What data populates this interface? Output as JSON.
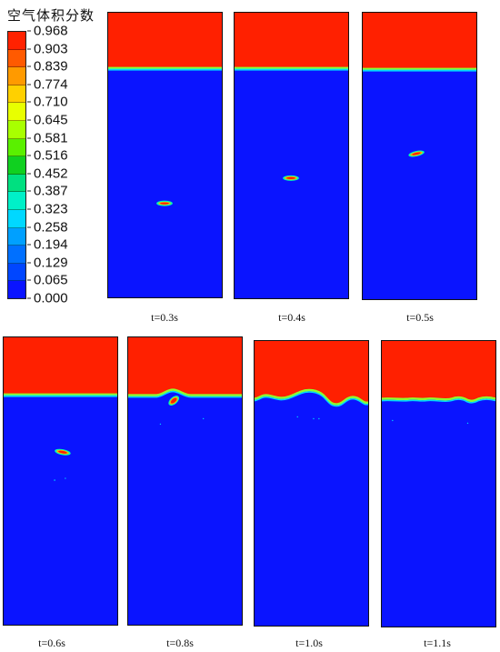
{
  "legend": {
    "title": "空气体积分数",
    "ticks": [
      "0.968",
      "0.903",
      "0.839",
      "0.774",
      "0.710",
      "0.645",
      "0.581",
      "0.516",
      "0.452",
      "0.387",
      "0.323",
      "0.258",
      "0.194",
      "0.129",
      "0.065",
      "0.000"
    ],
    "colors": [
      "#ff2200",
      "#ff5a00",
      "#ff9a00",
      "#ffd000",
      "#e8ff00",
      "#a8ff00",
      "#5af000",
      "#10d020",
      "#00e080",
      "#00f0c8",
      "#00d8ff",
      "#00a0ff",
      "#0070ff",
      "#0046ff",
      "#0a14ff"
    ]
  },
  "colors": {
    "air": "#ff2000",
    "water": "#0a14ff"
  },
  "panels": [
    {
      "caption": "t=0.3s"
    },
    {
      "caption": "t=0.4s"
    },
    {
      "caption": "t=0.5s"
    },
    {
      "caption": "t=0.6s"
    },
    {
      "caption": "t=0.8s"
    },
    {
      "caption": "t=1.0s"
    },
    {
      "caption": "t=1.1s"
    }
  ]
}
